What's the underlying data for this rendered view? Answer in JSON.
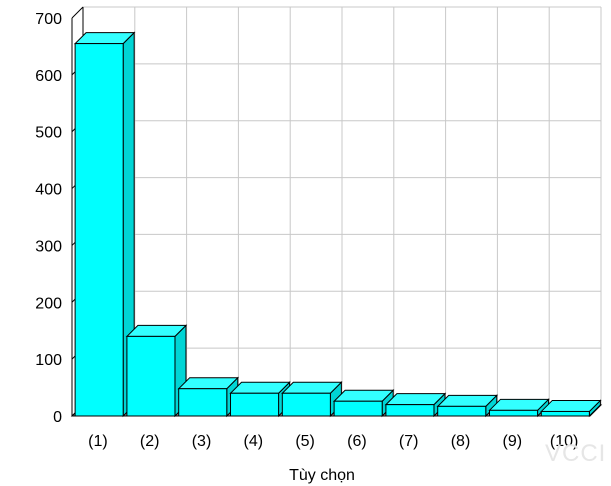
{
  "chart_data": {
    "type": "bar",
    "title": "",
    "xlabel": "Tùy chọn",
    "ylabel": "",
    "categories": [
      "(1)",
      "(2)",
      "(3)",
      "(4)",
      "(5)",
      "(6)",
      "(7)",
      "(8)",
      "(9)",
      "(10)"
    ],
    "values": [
      655,
      140,
      48,
      40,
      40,
      26,
      20,
      17,
      10,
      8
    ],
    "ylim": [
      0,
      700
    ],
    "yticks": [
      0,
      100,
      200,
      300,
      400,
      500,
      600,
      700
    ],
    "grid": true,
    "legend": "none",
    "three_d": true,
    "colors": {
      "bar_front": "#00FFFF",
      "bar_top": "#33FFFF",
      "bar_side": "#00D5D5",
      "floor": "#8C8C8C",
      "grid": "#C8C8C8"
    }
  },
  "watermark": "VCCI"
}
